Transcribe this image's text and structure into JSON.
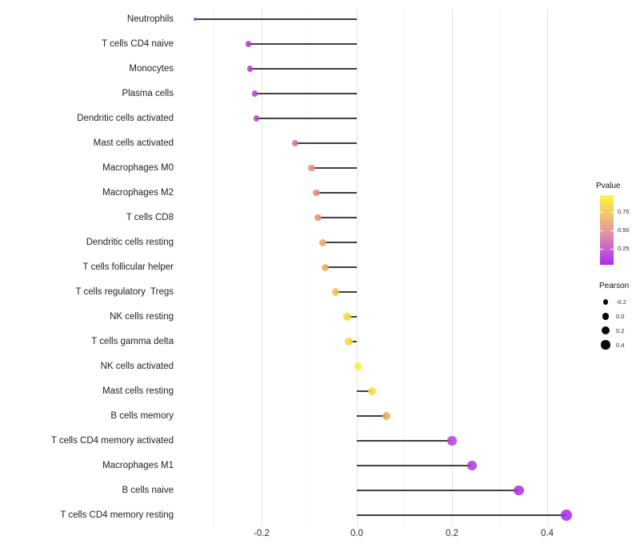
{
  "chart_data": {
    "type": "lollipop",
    "title": "",
    "xlabel": "",
    "ylabel": "",
    "xlim": [
      -0.37,
      0.47
    ],
    "grid": "vertical-only",
    "x_major_ticks": [
      {
        "value": -0.2,
        "label": "-0.2"
      },
      {
        "value": 0.0,
        "label": "0.0"
      },
      {
        "value": 0.2,
        "label": "0.2"
      },
      {
        "value": 0.4,
        "label": "0.4"
      }
    ],
    "x_minor_gridlines": [
      -0.3,
      -0.1,
      0.1,
      0.3
    ],
    "points": [
      {
        "label": "Neutrophils",
        "pearson": -0.34,
        "color": "#A52BE8",
        "radius": 2.2
      },
      {
        "label": "T cells CD4 naive",
        "pearson": -0.228,
        "color": "#B341C9",
        "radius": 3.6
      },
      {
        "label": "Monocytes",
        "pearson": -0.225,
        "color": "#B23FCA",
        "radius": 3.6
      },
      {
        "label": "Plasma cells",
        "pearson": -0.214,
        "color": "#B246CC",
        "radius": 3.7
      },
      {
        "label": "Dendritic cells activated",
        "pearson": -0.211,
        "color": "#B247CB",
        "radius": 3.7
      },
      {
        "label": "Mast cells activated",
        "pearson": -0.129,
        "color": "#D1709F",
        "radius": 4.1
      },
      {
        "label": "Macrophages M0",
        "pearson": -0.095,
        "color": "#E2917F",
        "radius": 4.3
      },
      {
        "label": "Macrophages M2",
        "pearson": -0.085,
        "color": "#E18F7D",
        "radius": 4.4
      },
      {
        "label": "T cells CD8",
        "pearson": -0.081,
        "color": "#E39478",
        "radius": 4.4
      },
      {
        "label": "Dendritic cells resting",
        "pearson": -0.071,
        "color": "#E8A865",
        "radius": 4.5
      },
      {
        "label": "T cells follicular helper",
        "pearson": -0.066,
        "color": "#EAAF5C",
        "radius": 4.5
      },
      {
        "label": "T cells regulatory  Tregs",
        "pearson": -0.045,
        "color": "#EFC44D",
        "radius": 4.6
      },
      {
        "label": "NK cells resting",
        "pearson": -0.02,
        "color": "#F2DC40",
        "radius": 4.7
      },
      {
        "label": "T cells gamma delta",
        "pearson": -0.017,
        "color": "#F2DC40",
        "radius": 4.7
      },
      {
        "label": "NK cells activated",
        "pearson": 0.003,
        "color": "#F7F238",
        "radius": 4.6
      },
      {
        "label": "Mast cells resting",
        "pearson": 0.032,
        "color": "#F3DC3E",
        "radius": 4.9
      },
      {
        "label": "B cells memory",
        "pearson": 0.063,
        "color": "#EBAE54",
        "radius": 5.0
      },
      {
        "label": "T cells CD4 memory activated",
        "pearson": 0.2,
        "color": "#B944D6",
        "radius": 5.6
      },
      {
        "label": "Macrophages M1",
        "pearson": 0.242,
        "color": "#B138DF",
        "radius": 5.8
      },
      {
        "label": "B cells naive",
        "pearson": 0.34,
        "color": "#AC2EE4",
        "radius": 6.4
      },
      {
        "label": "T cells CD4 memory resting",
        "pearson": 0.44,
        "color": "#A92BE8",
        "radius": 7.0
      }
    ],
    "legend_pvalue": {
      "title": "Pvalue",
      "gradient_stops": [
        {
          "pos": 0,
          "color": "#FAF73E"
        },
        {
          "pos": 24,
          "color": "#F5CB65"
        },
        {
          "pos": 50,
          "color": "#E99B9B"
        },
        {
          "pos": 77,
          "color": "#C862CF"
        },
        {
          "pos": 100,
          "color": "#AC2CF0"
        }
      ],
      "ticks": [
        {
          "label": "0.75",
          "pos": 24
        },
        {
          "label": "0.50",
          "pos": 50
        },
        {
          "label": "0.25",
          "pos": 77
        }
      ]
    },
    "legend_pearson": {
      "title": "Pearson",
      "dot_color": "#0a0a0a",
      "entries": [
        {
          "label": "-0.2",
          "radius": 3.3
        },
        {
          "label": "0.0",
          "radius": 4.3
        },
        {
          "label": "0.2",
          "radius": 5.0
        },
        {
          "label": "0.4",
          "radius": 5.7
        }
      ]
    },
    "colors": {
      "stem": "#3f3f3f",
      "grid_major": "#e4e4e4",
      "grid_minor": "#f4f4f4",
      "axis_text": "#303030",
      "gradient_high": "#FAF73E",
      "gradient_low": "#AC2CF0"
    }
  }
}
